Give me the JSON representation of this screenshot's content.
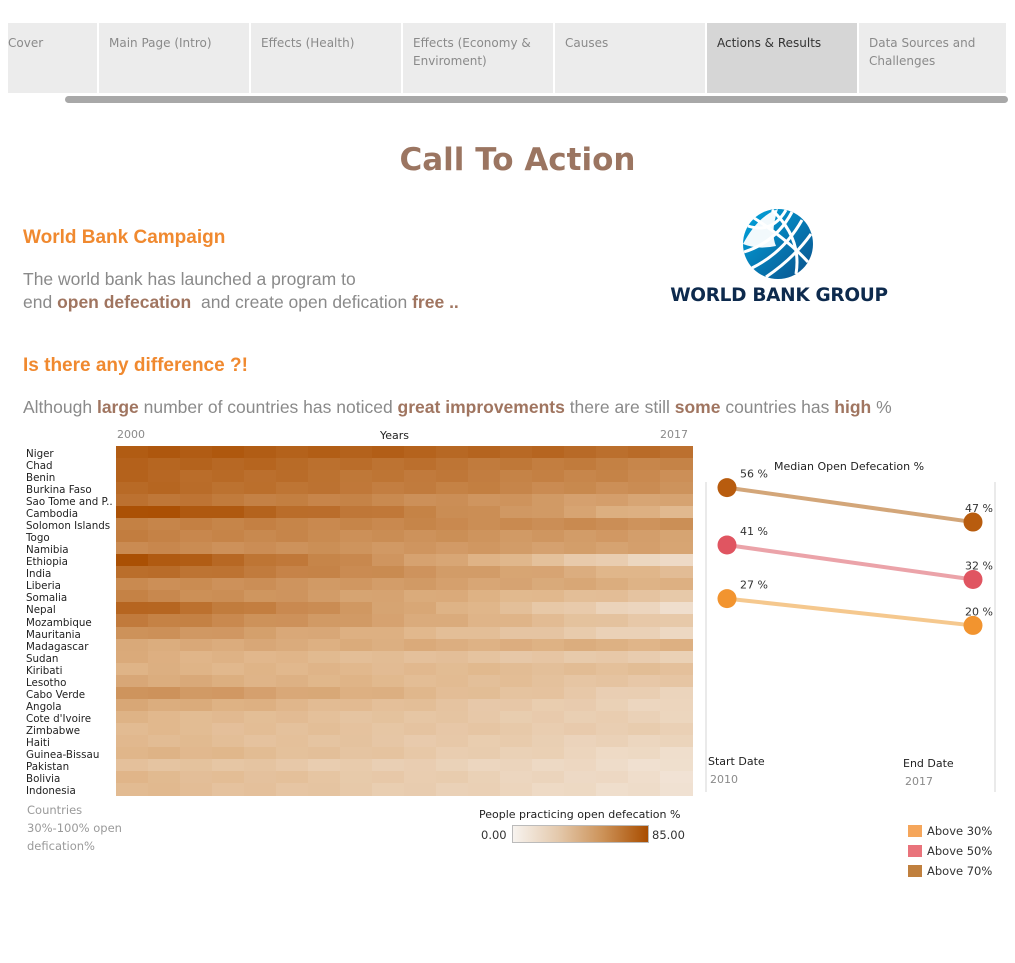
{
  "tabs": [
    {
      "label": "Cover"
    },
    {
      "label": "Main Page (Intro)"
    },
    {
      "label": "Effects (Health)"
    },
    {
      "label": "Effects (Economy & Enviroment)"
    },
    {
      "label": "Causes"
    },
    {
      "label": "Actions & Results"
    },
    {
      "label": "Data Sources and Challenges"
    }
  ],
  "active_tab": "Actions & Results",
  "title": "Call To Action",
  "section1": {
    "heading": "World Bank Campaign",
    "line1": "The world bank has launched a program to",
    "line2_a": "end ",
    "line2_b": "open defecation",
    "line2_c": "  and create open defication ",
    "line2_d": "free .."
  },
  "logo": {
    "text": "WORLD BANK GROUP"
  },
  "section2": {
    "heading": "Is there any difference ?!",
    "p_a": "Although ",
    "p_b": "large",
    "p_c": " number of countries has noticed ",
    "p_d": "great improvements",
    "p_e": " there are still ",
    "p_f": "some",
    "p_g": " countries has ",
    "p_h": "high",
    "p_i": " %"
  },
  "footnote": {
    "line1": "Countries",
    "line2": "30%-100% open",
    "line3": "defication%"
  },
  "colors": {
    "accent_orange": "#f0892f",
    "brown_text": "#9b7561",
    "heat_low": "#f7f3ef",
    "heat_high": "#a94d00"
  },
  "chart_data": [
    {
      "type": "heatmap",
      "title": "",
      "xlabel": "Years",
      "x_start_label": "2000",
      "x_end_label": "2017",
      "x": [
        2000,
        2001,
        2002,
        2003,
        2004,
        2005,
        2006,
        2007,
        2008,
        2009,
        2010,
        2011,
        2012,
        2013,
        2014,
        2015,
        2016,
        2017
      ],
      "ylabel": "",
      "countries": [
        "Niger",
        "Chad",
        "Benin",
        "Burkina Faso",
        "Sao Tome and P..",
        "Cambodia",
        "Solomon Islands",
        "Togo",
        "Namibia",
        "Ethiopia",
        "India",
        "Liberia",
        "Somalia",
        "Nepal",
        "Mozambique",
        "Mauritania",
        "Madagascar",
        "Sudan",
        "Kiribati",
        "Lesotho",
        "Cabo Verde",
        "Angola",
        "Cote d'Ivoire",
        "Zimbabwe",
        "Haiti",
        "Guinea-Bissau",
        "Pakistan",
        "Bolivia",
        "Indonesia"
      ],
      "start_values": [
        80,
        76,
        74,
        73,
        68,
        85,
        62,
        62,
        58,
        83,
        72,
        58,
        60,
        75,
        64,
        56,
        44,
        42,
        40,
        44,
        55,
        45,
        38,
        36,
        36,
        40,
        32,
        37,
        36
      ],
      "end_values": [
        70,
        60,
        57,
        54,
        45,
        37,
        55,
        48,
        46,
        14,
        35,
        40,
        28,
        13,
        25,
        18,
        40,
        23,
        32,
        27,
        20,
        18,
        20,
        22,
        18,
        14,
        12,
        12,
        11
      ],
      "color_legend": {
        "title": "People practicing open defecation %",
        "min_label": "0.00",
        "max_label": "85.00",
        "min": 0,
        "max": 85
      }
    },
    {
      "type": "line",
      "title": "Median Open Defecation %",
      "x": [
        "Start Date",
        "End Date"
      ],
      "x_sub": [
        "2010",
        "2017"
      ],
      "series": [
        {
          "name": "Above 70%",
          "values": [
            56,
            47
          ],
          "color": "#b85c0e",
          "line_color": "#d3a679",
          "labels": [
            "56 %",
            "47 %"
          ]
        },
        {
          "name": "Above 50%",
          "values": [
            41,
            32
          ],
          "color": "#e05561",
          "line_color": "#eba3a9",
          "labels": [
            "41 %",
            "32 %"
          ]
        },
        {
          "name": "Above 30%",
          "values": [
            27,
            20
          ],
          "color": "#f2942f",
          "line_color": "#f5c88e",
          "labels": [
            "27 %",
            "20 %"
          ]
        }
      ],
      "legend": [
        {
          "label": "Above 30%",
          "color": "#f5a65b"
        },
        {
          "label": "Above 50%",
          "color": "#e9737b"
        },
        {
          "label": "Above 70%",
          "color": "#c0803e"
        }
      ]
    }
  ]
}
